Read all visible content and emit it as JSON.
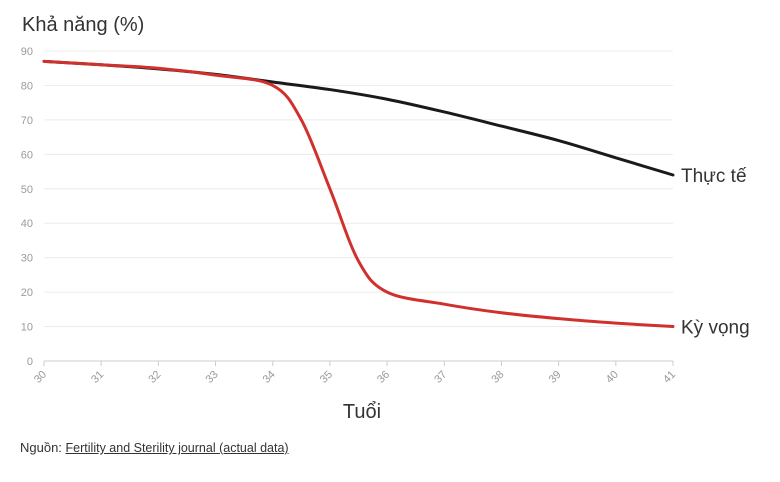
{
  "chart_data": {
    "type": "line",
    "ylabel": "Khả năng (%)",
    "xlabel": "Tuổi",
    "xlim": [
      30,
      41
    ],
    "ylim": [
      0,
      90
    ],
    "x_ticks": [
      30,
      31,
      32,
      33,
      34,
      35,
      36,
      37,
      38,
      39,
      40,
      41
    ],
    "y_ticks": [
      0,
      10,
      20,
      30,
      40,
      50,
      60,
      70,
      80,
      90
    ],
    "grid": true,
    "series": [
      {
        "name": "Thực tế",
        "color": "#1a1a1a",
        "x": [
          30,
          31,
          32,
          33,
          34,
          35,
          36,
          37,
          38,
          39,
          40,
          41
        ],
        "y": [
          87,
          86,
          84.8,
          83.2,
          81,
          78.8,
          76,
          72.3,
          68.2,
          64,
          59,
          54
        ]
      },
      {
        "name": "Kỳ vọng",
        "color": "#d0312d",
        "x": [
          30,
          31,
          32,
          33,
          34,
          34.5,
          35,
          35.5,
          36,
          37,
          38,
          39,
          40,
          41
        ],
        "y": [
          87,
          86,
          85,
          83,
          80,
          70,
          50,
          29,
          20,
          16.5,
          14,
          12.3,
          11,
          10
        ]
      }
    ]
  },
  "source": {
    "prefix": "Nguồn:",
    "link_text": "Fertility and Sterility journal (actual data)"
  }
}
